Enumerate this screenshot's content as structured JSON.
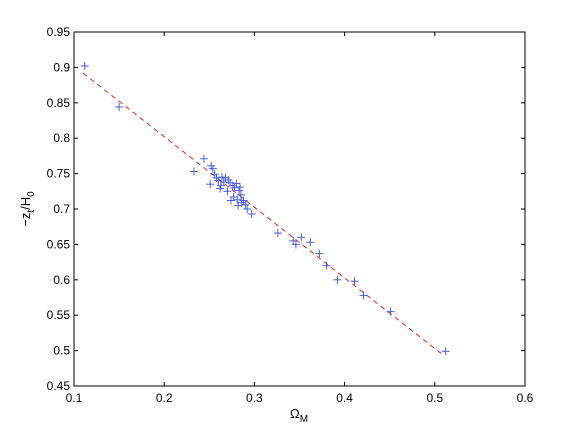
{
  "chart_data": {
    "type": "scatter",
    "xlabel": "Ω",
    "xlabel_sub": "M",
    "ylabel": "−z",
    "ylabel_sub": "t",
    "ylabel_rest": "/H",
    "ylabel_sub2": "0",
    "xlim": [
      0.1,
      0.6
    ],
    "ylim": [
      0.45,
      0.95
    ],
    "xticks": [
      "0.1",
      "0.2",
      "0.3",
      "0.4",
      "0.5",
      "0.6"
    ],
    "yticks": [
      "0.45",
      "0.5",
      "0.55",
      "0.6",
      "0.65",
      "0.7",
      "0.75",
      "0.8",
      "0.85",
      "0.9",
      "0.95"
    ],
    "grid": false,
    "series": [
      {
        "marker": "+",
        "color": "#4a5fd8",
        "points": [
          [
            0.112,
            0.902
          ],
          [
            0.15,
            0.844
          ],
          [
            0.233,
            0.753
          ],
          [
            0.244,
            0.771
          ],
          [
            0.251,
            0.735
          ],
          [
            0.252,
            0.761
          ],
          [
            0.254,
            0.757
          ],
          [
            0.256,
            0.749
          ],
          [
            0.258,
            0.744
          ],
          [
            0.26,
            0.74
          ],
          [
            0.262,
            0.729
          ],
          [
            0.263,
            0.733
          ],
          [
            0.264,
            0.745
          ],
          [
            0.266,
            0.738
          ],
          [
            0.268,
            0.744
          ],
          [
            0.27,
            0.725
          ],
          [
            0.271,
            0.741
          ],
          [
            0.273,
            0.737
          ],
          [
            0.274,
            0.712
          ],
          [
            0.276,
            0.733
          ],
          [
            0.277,
            0.717
          ],
          [
            0.278,
            0.73
          ],
          [
            0.28,
            0.736
          ],
          [
            0.281,
            0.713
          ],
          [
            0.282,
            0.705
          ],
          [
            0.283,
            0.726
          ],
          [
            0.284,
            0.731
          ],
          [
            0.285,
            0.72
          ],
          [
            0.286,
            0.709
          ],
          [
            0.288,
            0.712
          ],
          [
            0.29,
            0.706
          ],
          [
            0.292,
            0.7
          ],
          [
            0.297,
            0.693
          ],
          [
            0.326,
            0.666
          ],
          [
            0.343,
            0.655
          ],
          [
            0.346,
            0.65
          ],
          [
            0.352,
            0.66
          ],
          [
            0.362,
            0.653
          ],
          [
            0.372,
            0.637
          ],
          [
            0.38,
            0.62
          ],
          [
            0.392,
            0.6
          ],
          [
            0.411,
            0.598
          ],
          [
            0.421,
            0.578
          ],
          [
            0.451,
            0.555
          ],
          [
            0.512,
            0.499
          ]
        ]
      }
    ],
    "fit_line": {
      "style": "dashed",
      "color": "#e32222",
      "x": [
        0.11,
        0.51
      ],
      "y": [
        0.892,
        0.493
      ]
    }
  }
}
